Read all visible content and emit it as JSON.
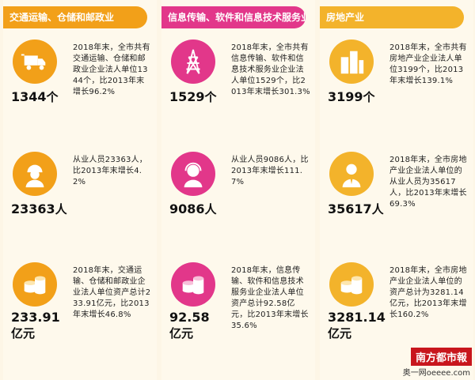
{
  "columns": [
    {
      "header": "交通运输、仓储和邮政业",
      "color": "#f2a019",
      "items": [
        {
          "icon": "truck-icon",
          "value": "1344",
          "unit": "个",
          "desc": "2018年末，全市共有交通运输、仓储和邮政业企业法人单位1344个，比2013年末增长96.2%"
        },
        {
          "icon": "worker-person-icon",
          "value": "23363",
          "unit": "人",
          "desc": "从业人员23363人，比2013年末增长4.2%"
        },
        {
          "icon": "coin-stack-icon",
          "value": "233.91",
          "unit": "亿元",
          "desc": "2018年末，交通运输、仓储和邮政业企业法人单位资产总计233.91亿元，比2013年末增长46.8%"
        }
      ]
    },
    {
      "header": "信息传输、软件和信息技术服务业",
      "color": "#e2378a",
      "items": [
        {
          "icon": "transmission-tower-icon",
          "value": "1529",
          "unit": "个",
          "desc": "2018年末，全市共有信息传输、软件和信息技术服务业企业法人单位1529个，比2013年末增长301.3%"
        },
        {
          "icon": "headset-person-icon",
          "value": "9086",
          "unit": "人",
          "desc": "从业人员9086人，比2013年末增长111.7%"
        },
        {
          "icon": "coin-stack-icon",
          "value": "92.58",
          "unit": "亿元",
          "desc": "2018年末，信息传输、软件和信息技术服务业企业法人单位资产总计92.58亿元，比2013年末增长35.6%"
        }
      ]
    },
    {
      "header": "房地产业",
      "color": "#f3b32b",
      "items": [
        {
          "icon": "buildings-icon",
          "value": "3199",
          "unit": "个",
          "desc": "2018年末，全市共有房地产业企业法人单位3199个，比2013年末增长139.1%"
        },
        {
          "icon": "businessman-icon",
          "value": "35617",
          "unit": "人",
          "desc": "2018年末，全市房地产业企业法人单位的从业人员为35617人，比2013年末增长69.3%"
        },
        {
          "icon": "coin-stack-icon",
          "value": "3281.14",
          "unit": "亿元",
          "desc": "2018年末，全市房地产业企业法人单位的资产总计为3281.14亿元，比2013年末增长160.2%"
        }
      ]
    }
  ],
  "logo": "南方都市報",
  "logo_sub": "奥一网oeeee.com"
}
